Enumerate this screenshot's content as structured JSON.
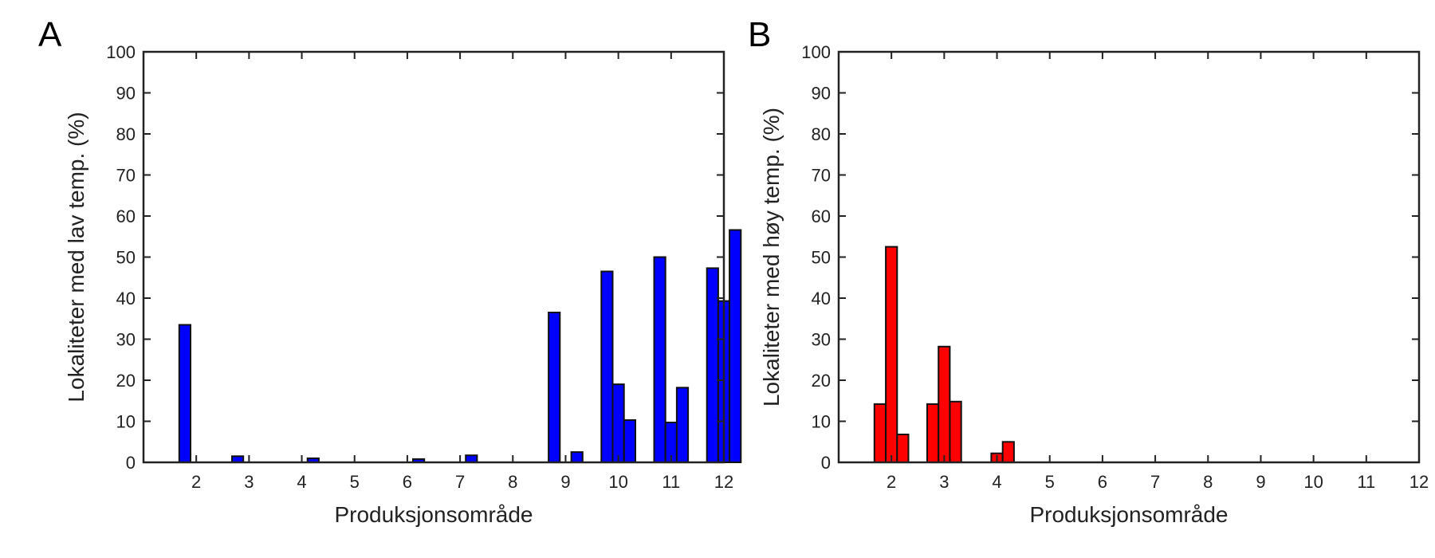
{
  "chart_data": [
    {
      "panel_label": "A",
      "type": "bar",
      "xlabel": "Produksjonsområde",
      "ylabel": "Lokaliteter med lav temp. (%)",
      "ylim": [
        0,
        100
      ],
      "yticks": [
        0,
        10,
        20,
        30,
        40,
        50,
        60,
        70,
        80,
        90,
        100
      ],
      "categories": [
        "2",
        "3",
        "4",
        "5",
        "6",
        "7",
        "8",
        "9",
        "10",
        "11",
        "12"
      ],
      "bar_color": "#0000ff",
      "grid": false,
      "series": [
        {
          "values": [
            33.5,
            1.5,
            0,
            0,
            0,
            0,
            0,
            36.5,
            46.5,
            50,
            47.3
          ]
        },
        {
          "values": [
            0,
            0,
            0,
            0,
            0,
            0,
            0,
            0,
            19,
            9.7,
            39.3
          ]
        },
        {
          "values": [
            0,
            0,
            1,
            0,
            0.8,
            1.7,
            0,
            2.5,
            10.3,
            18.2,
            56.6
          ]
        }
      ]
    },
    {
      "panel_label": "B",
      "type": "bar",
      "xlabel": "Produksjonsområde",
      "ylabel": "Lokaliteter med høy temp. (%)",
      "ylim": [
        0,
        100
      ],
      "yticks": [
        0,
        10,
        20,
        30,
        40,
        50,
        60,
        70,
        80,
        90,
        100
      ],
      "categories": [
        "2",
        "3",
        "4",
        "5",
        "6",
        "7",
        "8",
        "9",
        "10",
        "11",
        "12"
      ],
      "bar_color": "#ff0000",
      "grid": false,
      "series": [
        {
          "values": [
            14.2,
            14.2,
            0,
            0,
            0,
            0,
            0,
            0,
            0,
            0,
            0
          ]
        },
        {
          "values": [
            52.5,
            28.2,
            2.2,
            0,
            0,
            0,
            0,
            0,
            0,
            0,
            0
          ]
        },
        {
          "values": [
            6.8,
            14.8,
            5,
            0,
            0,
            0,
            0,
            0,
            0,
            0,
            0
          ]
        }
      ]
    }
  ]
}
